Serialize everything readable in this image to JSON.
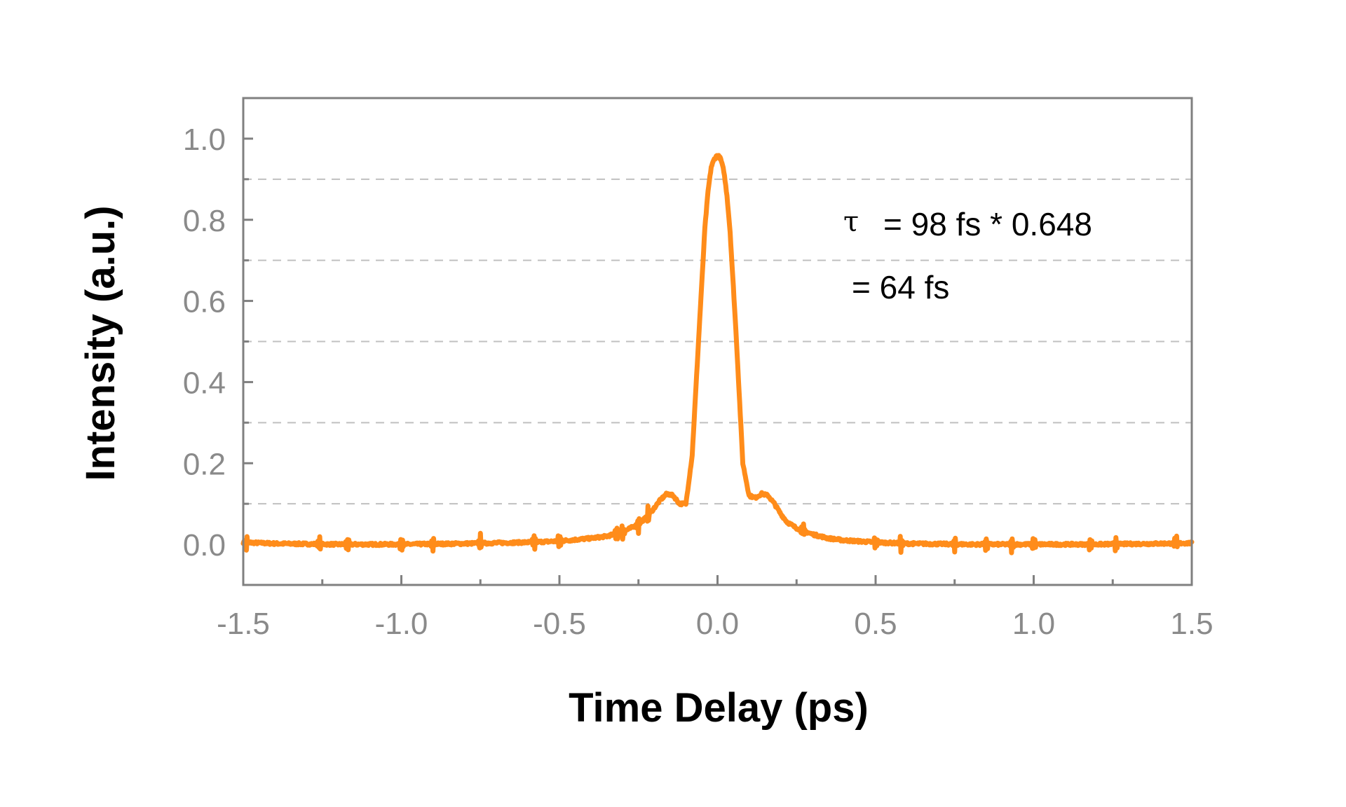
{
  "chart_data": {
    "type": "line",
    "title": "",
    "xlabel": "Time Delay (ps)",
    "ylabel": "Intensity (a.u.)",
    "xlim": [
      -1.5,
      1.5
    ],
    "ylim": [
      -0.1,
      1.1
    ],
    "x_ticks": [
      -1.5,
      -1.0,
      -0.5,
      0.0,
      0.5,
      1.0,
      1.5
    ],
    "x_tick_labels": [
      "-1.5",
      "-1.0",
      "-0.5",
      "0.0",
      "0.5",
      "1.0",
      "1.5"
    ],
    "x_minor_ticks": [
      -1.25,
      -0.75,
      -0.25,
      0.25,
      0.75,
      1.25
    ],
    "y_ticks": [
      0.0,
      0.2,
      0.4,
      0.6,
      0.8,
      1.0
    ],
    "y_tick_labels": [
      "0.0",
      "0.2",
      "0.4",
      "0.6",
      "0.8",
      "1.0"
    ],
    "grid_y": [
      0.1,
      0.3,
      0.5,
      0.7,
      0.9
    ],
    "grid": "horizontal dashed at odd tenths",
    "legend": "none",
    "series": [
      {
        "color": "#ff8c1a",
        "x": [
          -1.5,
          -1.4,
          -1.2,
          -1.0,
          -0.8,
          -0.6,
          -0.5,
          -0.4,
          -0.35,
          -0.3,
          -0.25,
          -0.22,
          -0.2,
          -0.18,
          -0.16,
          -0.14,
          -0.12,
          -0.1,
          -0.08,
          -0.06,
          -0.04,
          -0.03,
          -0.02,
          -0.01,
          0.0,
          0.01,
          0.02,
          0.03,
          0.04,
          0.06,
          0.08,
          0.1,
          0.12,
          0.14,
          0.16,
          0.18,
          0.2,
          0.22,
          0.25,
          0.3,
          0.35,
          0.4,
          0.5,
          0.6,
          0.8,
          1.0,
          1.2,
          1.4,
          1.5
        ],
        "values": [
          0.005,
          0.002,
          0.0,
          0.0,
          0.002,
          0.005,
          0.008,
          0.015,
          0.02,
          0.03,
          0.05,
          0.07,
          0.09,
          0.11,
          0.125,
          0.12,
          0.1,
          0.1,
          0.22,
          0.5,
          0.78,
          0.87,
          0.93,
          0.95,
          0.96,
          0.95,
          0.92,
          0.86,
          0.77,
          0.5,
          0.2,
          0.12,
          0.115,
          0.125,
          0.12,
          0.1,
          0.075,
          0.055,
          0.04,
          0.025,
          0.015,
          0.01,
          0.005,
          0.002,
          0.0,
          0.0,
          0.0,
          0.002,
          0.003
        ]
      }
    ],
    "annotations": [
      {
        "symbol": "τ",
        "text": "= 98 fs * 0.648"
      },
      {
        "text": "= 64 fs"
      }
    ]
  }
}
